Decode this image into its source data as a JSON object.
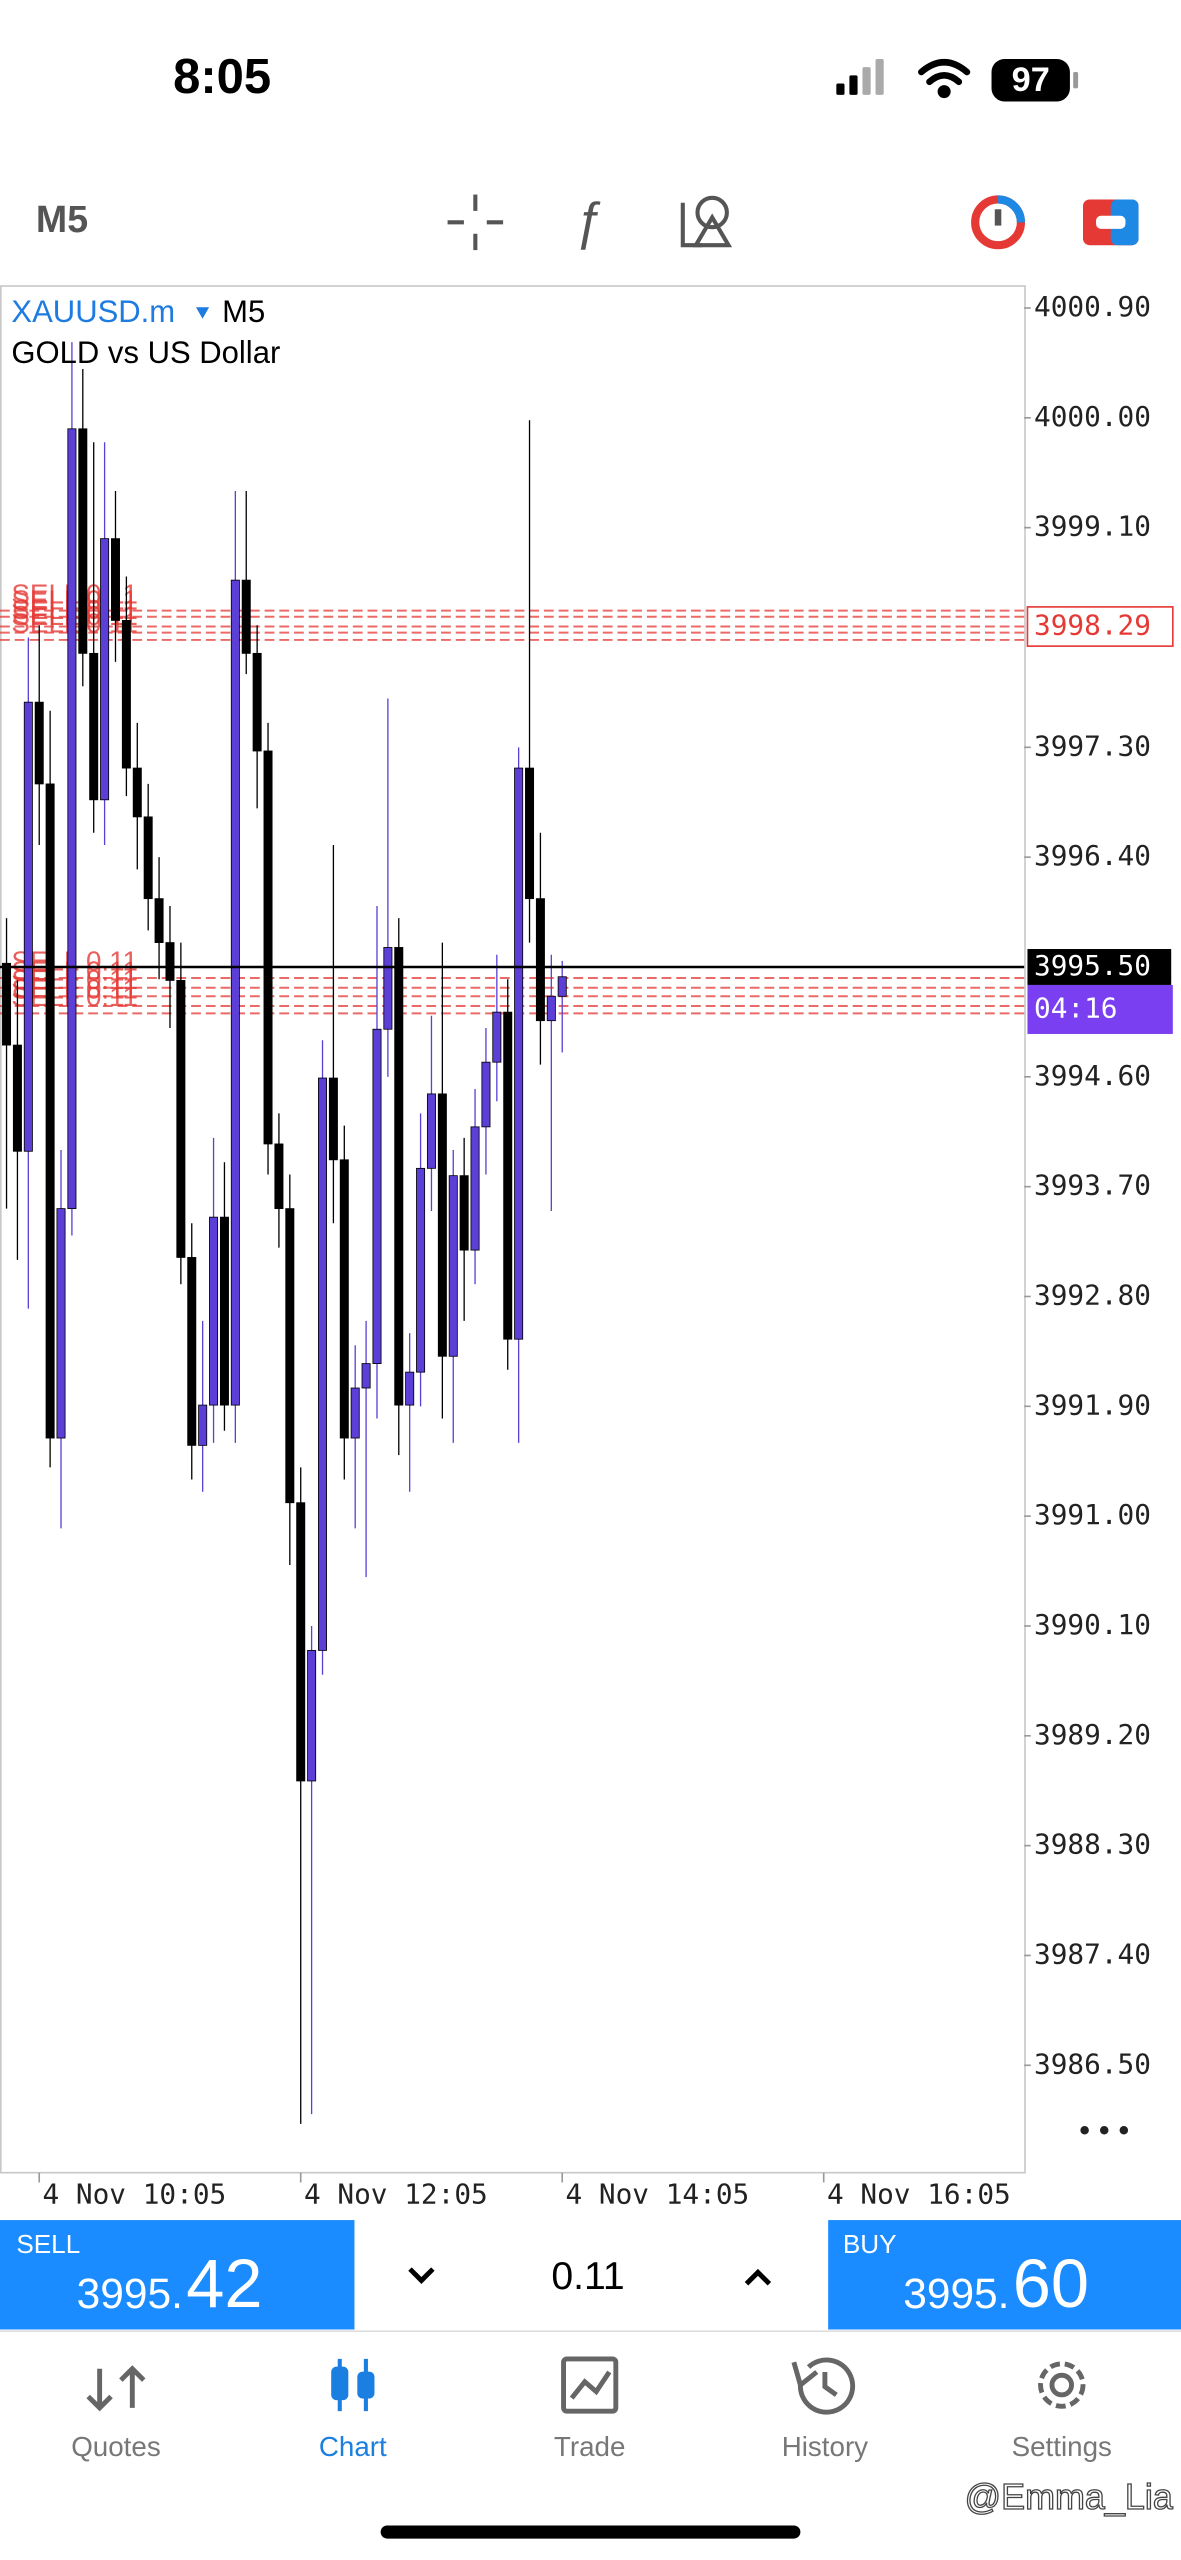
{
  "status_bar": {
    "time": "8:05",
    "battery": "97"
  },
  "toolbar": {
    "timeframe": "M5"
  },
  "chart_data": {
    "type": "candlestick",
    "symbol": "XAUUSD.m",
    "timeframe": "M5",
    "subtitle": "GOLD vs US Dollar",
    "up_color": "#5b3fd6",
    "down_color": "#000000",
    "grid": false,
    "x": [
      "4 Nov 09:50",
      "4 Nov 09:55",
      "4 Nov 10:00",
      "4 Nov 10:05",
      "4 Nov 10:10",
      "4 Nov 10:15",
      "4 Nov 10:20",
      "4 Nov 10:25",
      "4 Nov 10:30",
      "4 Nov 10:35",
      "4 Nov 10:40",
      "4 Nov 10:45",
      "4 Nov 10:50",
      "4 Nov 10:55",
      "4 Nov 11:00",
      "4 Nov 11:05",
      "4 Nov 11:10",
      "4 Nov 11:15",
      "4 Nov 11:20",
      "4 Nov 11:25",
      "4 Nov 11:30",
      "4 Nov 11:35",
      "4 Nov 11:40",
      "4 Nov 11:45",
      "4 Nov 11:50",
      "4 Nov 11:55",
      "4 Nov 12:00",
      "4 Nov 12:05",
      "4 Nov 12:10",
      "4 Nov 12:15",
      "4 Nov 12:20",
      "4 Nov 12:25",
      "4 Nov 12:30",
      "4 Nov 12:35",
      "4 Nov 12:40",
      "4 Nov 12:45",
      "4 Nov 12:50",
      "4 Nov 12:55",
      "4 Nov 13:00",
      "4 Nov 13:05",
      "4 Nov 13:10",
      "4 Nov 13:15",
      "4 Nov 13:20",
      "4 Nov 13:25",
      "4 Nov 13:30",
      "4 Nov 13:35",
      "4 Nov 13:40",
      "4 Nov 13:45",
      "4 Nov 13:50",
      "4 Nov 13:55",
      "4 Nov 14:00",
      "4 Nov 14:05"
    ],
    "open": [
      3995.53,
      3994.86,
      3993.99,
      3997.67,
      3997.0,
      3991.64,
      3993.52,
      3999.91,
      3998.07,
      3996.87,
      3999.01,
      3998.34,
      3997.13,
      3996.73,
      3996.06,
      3995.7,
      3995.39,
      3993.12,
      3991.58,
      3991.91,
      3993.45,
      3991.91,
      3998.67,
      3998.07,
      3997.27,
      3994.05,
      3993.52,
      3991.11,
      3988.83,
      3989.9,
      3994.59,
      3993.92,
      3991.64,
      3992.05,
      3992.25,
      3994.99,
      3995.66,
      3991.91,
      3992.18,
      3993.85,
      3994.46,
      3992.31,
      3993.79,
      3993.18,
      3994.19,
      3994.72,
      3995.13,
      3992.45,
      3997.13,
      3996.06,
      3995.06,
      3995.26
    ],
    "high": [
      3995.9,
      3995.39,
      3998.2,
      3998.3,
      3997.6,
      3994.0,
      4000.62,
      4000.4,
      3999.8,
      3999.8,
      3999.4,
      3998.7,
      3997.5,
      3997.0,
      3996.4,
      3996.0,
      3995.7,
      3993.4,
      3992.6,
      3994.1,
      3993.9,
      3999.4,
      3999.4,
      3998.3,
      3997.5,
      3994.3,
      3993.8,
      3991.4,
      3990.1,
      3994.9,
      3996.5,
      3994.2,
      3992.4,
      3992.6,
      3996.0,
      3997.7,
      3995.9,
      3992.5,
      3994.3,
      3995.1,
      3995.7,
      3994.0,
      3994.1,
      3994.5,
      3995.0,
      3995.6,
      3995.4,
      3997.3,
      3999.98,
      3996.6,
      3995.6,
      3995.55
    ],
    "low": [
      3993.52,
      3993.1,
      3992.7,
      3996.5,
      3991.4,
      3990.9,
      3993.3,
      3997.8,
      3996.6,
      3996.5,
      3998.0,
      3996.9,
      3996.3,
      3995.8,
      3995.4,
      3995.0,
      3992.9,
      3991.3,
      3991.2,
      3991.6,
      3991.7,
      3991.6,
      3997.9,
      3996.8,
      3993.8,
      3993.2,
      3990.6,
      3986.02,
      3986.1,
      3989.7,
      3993.4,
      3991.3,
      3990.9,
      3990.5,
      3991.8,
      3994.6,
      3991.5,
      3991.2,
      3991.9,
      3993.5,
      3991.8,
      3991.6,
      3992.6,
      3992.9,
      3993.8,
      3994.4,
      3992.2,
      3991.6,
      3995.7,
      3994.7,
      3993.5,
      3994.8
    ],
    "close": [
      3994.86,
      3993.99,
      3997.67,
      3997.0,
      3991.64,
      3993.52,
      3999.91,
      3998.07,
      3996.87,
      3999.01,
      3998.34,
      3997.13,
      3996.73,
      3996.06,
      3995.7,
      3995.39,
      3993.12,
      3991.58,
      3991.91,
      3993.45,
      3991.91,
      3998.67,
      3998.07,
      3997.27,
      3994.05,
      3993.52,
      3991.11,
      3988.83,
      3989.9,
      3994.59,
      3993.92,
      3991.64,
      3992.05,
      3992.25,
      3994.99,
      3995.66,
      3991.91,
      3992.18,
      3993.85,
      3994.46,
      3992.31,
      3993.79,
      3993.18,
      3994.19,
      3994.72,
      3995.13,
      3992.45,
      3997.13,
      3996.06,
      3995.06,
      3995.26,
      3995.42
    ],
    "xlim": [
      "4 Nov 09:47",
      "4 Nov 17:37"
    ],
    "xticks": [
      "4 Nov 10:05",
      "4 Nov 12:05",
      "4 Nov 14:05",
      "4 Nov 16:05"
    ],
    "ylim": [
      3985.62,
      4001.08
    ],
    "yticks": [
      {
        "value": 4000.9,
        "label": "4000.90"
      },
      {
        "value": 4000,
        "label": "4000.00"
      },
      {
        "value": 3999.1,
        "label": "3999.10"
      },
      {
        "value": 3997.3,
        "label": "3997.30"
      },
      {
        "value": 3996.4,
        "label": "3996.40"
      },
      {
        "value": 3994.6,
        "label": "3994.60"
      },
      {
        "value": 3993.7,
        "label": "3993.70"
      },
      {
        "value": 3992.8,
        "label": "3992.80"
      },
      {
        "value": 3991.9,
        "label": "3991.90"
      },
      {
        "value": 3991,
        "label": "3991.00"
      },
      {
        "value": 3990.1,
        "label": "3990.10"
      },
      {
        "value": 3989.2,
        "label": "3989.20"
      },
      {
        "value": 3988.3,
        "label": "3988.30"
      },
      {
        "value": 3987.4,
        "label": "3987.40"
      },
      {
        "value": 3986.5,
        "label": "3986.50"
      }
    ],
    "order_lines": [
      {
        "label": "SELL 0.11",
        "price": 3998.42
      },
      {
        "label": "SELL 0.11",
        "price": 3998.37
      },
      {
        "label": "SELL 0.11",
        "price": 3998.29
      },
      {
        "label": "SELL 0.11",
        "price": 3998.24
      },
      {
        "label": "SELL 0.11",
        "price": 3998.18
      },
      {
        "label": "SELL 0.11",
        "price": 3995.41
      },
      {
        "label": "SELL 0.11",
        "price": 3995.33
      },
      {
        "label": "SELL 0.11",
        "price": 3995.26
      },
      {
        "label": "SELL 0.11",
        "price": 3995.18
      },
      {
        "label": "SELL 0.11",
        "price": 3995.12
      }
    ],
    "order_color": "#e53935",
    "order_tag": 3998.29,
    "bid": {
      "value": 3995.5,
      "label": "3995.50"
    },
    "countdown": "04:16"
  },
  "trade_panel": {
    "sell": {
      "label": "SELL",
      "prefix": "3995.",
      "suffix": "42"
    },
    "volume": "0.11",
    "buy": {
      "label": "BUY",
      "prefix": "3995.",
      "suffix": "60"
    }
  },
  "nav": [
    {
      "label": "Quotes"
    },
    {
      "label": "Chart"
    },
    {
      "label": "Trade"
    },
    {
      "label": "History"
    },
    {
      "label": "Settings"
    }
  ],
  "watermark": "@Emma_Lia"
}
